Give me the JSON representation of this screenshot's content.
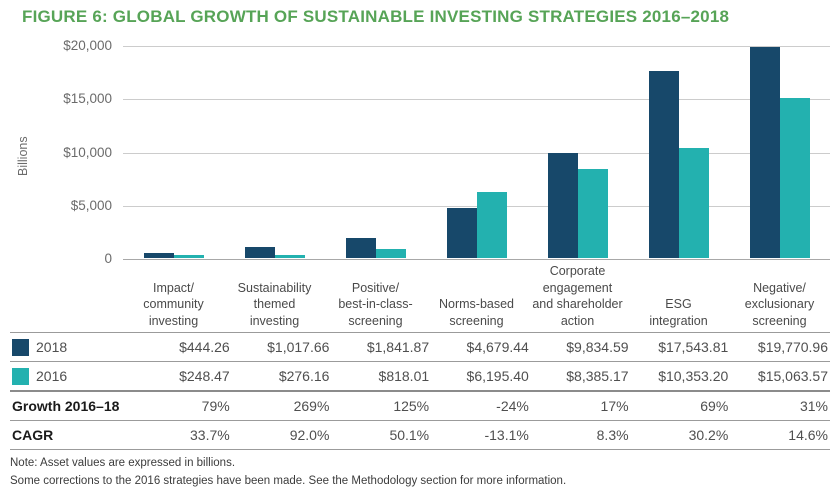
{
  "title": "FIGURE 6: GLOBAL GROWTH OF SUSTAINABLE INVESTING STRATEGIES 2016–2018",
  "colors": {
    "title_green": "#57A457",
    "navy_2018": "#17486A",
    "teal_2016": "#23B1AF"
  },
  "chart_data": {
    "type": "bar",
    "title": "FIGURE 6: GLOBAL GROWTH OF SUSTAINABLE INVESTING STRATEGIES 2016–2018",
    "ylabel": "Billions",
    "ylim": [
      0,
      20000
    ],
    "grid": "horizontal",
    "legend_position": "table-below",
    "yticks": [
      {
        "value": 0,
        "label": "0"
      },
      {
        "value": 5000,
        "label": "$5,000"
      },
      {
        "value": 10000,
        "label": "$10,000"
      },
      {
        "value": 15000,
        "label": "$15,000"
      },
      {
        "value": 20000,
        "label": "$20,000"
      }
    ],
    "categories": [
      "Impact/\ncommunity\ninvesting",
      "Sustainability\nthemed\ninvesting",
      "Positive/\nbest-in-class-\nscreening",
      "Norms-based\nscreening",
      "Corporate\nengagement\nand shareholder\naction",
      "ESG\nintegration",
      "Negative/\nexclusionary\nscreening"
    ],
    "series": [
      {
        "name": "2018",
        "color": "#17486A",
        "values": [
          444.26,
          1017.66,
          1841.87,
          4679.44,
          9834.59,
          17543.81,
          19770.96
        ]
      },
      {
        "name": "2016",
        "color": "#23B1AF",
        "values": [
          248.47,
          276.16,
          818.01,
          6195.4,
          8385.17,
          10353.2,
          15063.57
        ]
      }
    ]
  },
  "table": {
    "rows": [
      {
        "label": "2018",
        "swatch": "#17486A",
        "bold": false,
        "values": [
          "$444.26",
          "$1,017.66",
          "$1,841.87",
          "$4,679.44",
          "$9,834.59",
          "$17,543.81",
          "$19,770.96"
        ]
      },
      {
        "label": "2016",
        "swatch": "#23B1AF",
        "bold": false,
        "values": [
          "$248.47",
          "$276.16",
          "$818.01",
          "$6,195.40",
          "$8,385.17",
          "$10,353.20",
          "$15,063.57"
        ]
      },
      {
        "label": "Growth 2016–18",
        "bold": true,
        "values": [
          "79%",
          "269%",
          "125%",
          "-24%",
          "17%",
          "69%",
          "31%"
        ]
      },
      {
        "label": "CAGR",
        "bold": true,
        "values": [
          "33.7%",
          "92.0%",
          "50.1%",
          "-13.1%",
          "8.3%",
          "30.2%",
          "14.6%"
        ]
      }
    ]
  },
  "notes": [
    "Note: Asset values are expressed in billions.",
    "Some corrections to the 2016 strategies have been made. See the Methodology section for more information."
  ]
}
